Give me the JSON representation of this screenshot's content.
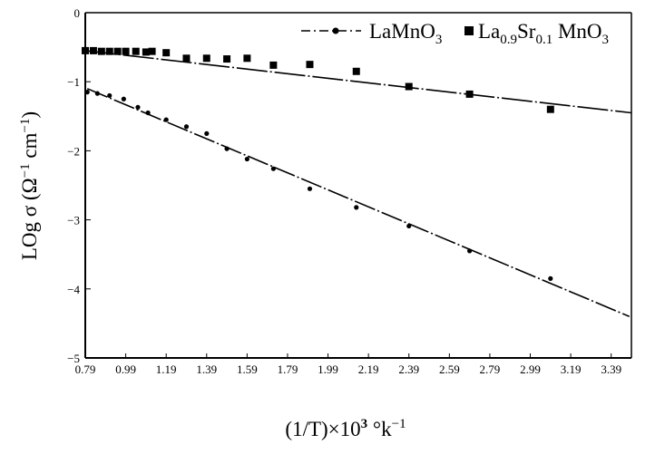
{
  "chart_data": {
    "type": "scatter",
    "title": "",
    "xlabel": "(1/T)×10",
    "xlabel_sup": "3",
    "xlabel_unit": " °k",
    "xlabel_unit_sup": "−1",
    "ylabel": "LOg σ (Ω",
    "ylabel_sup1": "−1",
    "ylabel_mid": " cm",
    "ylabel_sup2": "−1",
    "ylabel_end": ")",
    "xlim": [
      0.79,
      3.49
    ],
    "ylim": [
      -5,
      0
    ],
    "xticks": [
      "0.79",
      "0.99",
      "1.19",
      "1.39",
      "1.59",
      "1.79",
      "1.99",
      "2.19",
      "2.39",
      "2.59",
      "2.79",
      "2.99",
      "3.19",
      "3.39"
    ],
    "yticks": [
      "0",
      "−1",
      "−2",
      "−3",
      "−4",
      "−5"
    ],
    "legend_position": "top-right",
    "series": [
      {
        "name": "LaMnO3",
        "name_parts": [
          "LaMnO",
          "3",
          ""
        ],
        "marker": "dot",
        "color": "#000000",
        "x": [
          0.8,
          0.85,
          0.91,
          0.98,
          1.05,
          1.1,
          1.19,
          1.29,
          1.39,
          1.49,
          1.59,
          1.72,
          1.9,
          2.13,
          2.39,
          2.69,
          3.09
        ],
        "y": [
          -1.15,
          -1.17,
          -1.2,
          -1.25,
          -1.37,
          -1.45,
          -1.55,
          -1.65,
          -1.75,
          -1.97,
          -2.12,
          -2.26,
          -2.55,
          -2.82,
          -3.09,
          -3.45,
          -3.85
        ],
        "fit": {
          "x": [
            0.8,
            3.48
          ],
          "y": [
            -1.1,
            -4.4
          ]
        }
      },
      {
        "name": "La0.9Sr0.1 MnO3",
        "name_parts": [
          "La",
          "0.9",
          "Sr",
          "0.1",
          " MnO",
          "3"
        ],
        "marker": "square",
        "color": "#000000",
        "x": [
          0.79,
          0.83,
          0.87,
          0.91,
          0.95,
          0.99,
          1.04,
          1.09,
          1.12,
          1.19,
          1.29,
          1.39,
          1.49,
          1.59,
          1.72,
          1.9,
          2.13,
          2.39,
          2.69,
          3.09
        ],
        "y": [
          -0.55,
          -0.55,
          -0.56,
          -0.56,
          -0.56,
          -0.56,
          -0.56,
          -0.57,
          -0.56,
          -0.58,
          -0.66,
          -0.66,
          -0.67,
          -0.66,
          -0.76,
          -0.75,
          -0.85,
          -1.07,
          -1.18,
          -1.4
        ],
        "fit": {
          "x": [
            0.79,
            3.49
          ],
          "y": [
            -0.55,
            -1.45
          ]
        }
      }
    ]
  }
}
